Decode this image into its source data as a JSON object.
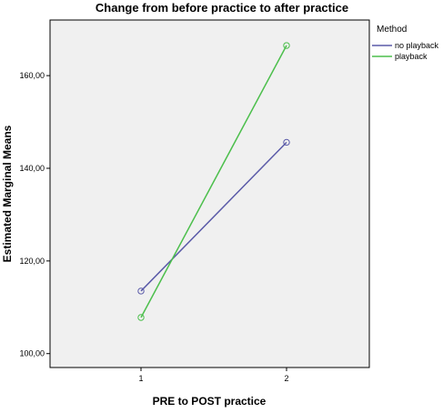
{
  "chart_data": {
    "type": "line",
    "title": "Change from before practice to after practice",
    "xlabel": "PRE to POST practice",
    "ylabel": "Estimated Marginal Means",
    "categories": [
      "1",
      "2"
    ],
    "ylim": [
      97,
      172
    ],
    "yticks": [
      100,
      120,
      140,
      160
    ],
    "ytick_labels": [
      "100,00",
      "120,00",
      "140,00",
      "160,00"
    ],
    "grid": false,
    "legend_position": "right",
    "legend_title": "Method",
    "series": [
      {
        "name": "no playback",
        "values": [
          113.5,
          145.6
        ],
        "color": "#5a5aa8"
      },
      {
        "name": "playback",
        "values": [
          107.8,
          166.5
        ],
        "color": "#4cbf4c"
      }
    ]
  }
}
